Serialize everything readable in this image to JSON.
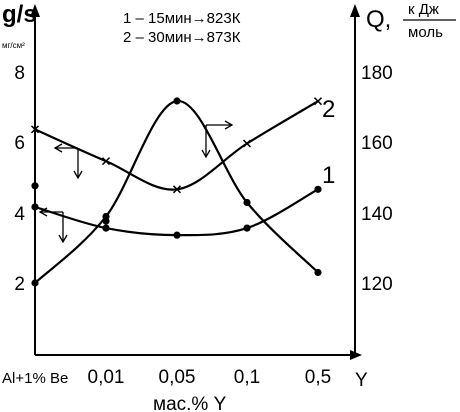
{
  "chart_data": {
    "type": "line",
    "left_axis": {
      "label": "g/s",
      "unit": "мг/см²",
      "ticks": [
        "2",
        "4",
        "6",
        "8"
      ],
      "range": [
        0,
        10
      ]
    },
    "right_axis": {
      "label": "Q,",
      "unit_num": "к Дж",
      "unit_den": "моль",
      "ticks": [
        "120",
        "140",
        "160",
        "180"
      ],
      "range": [
        100,
        192
      ]
    },
    "x_axis": {
      "label": "мас.% Y",
      "end_label": "Y",
      "categories": [
        "Al+1% Be",
        "0,01",
        "0,05",
        "0,1",
        "0,5"
      ]
    },
    "legend": [
      "1 – 15мин→823К",
      "2 – 30мин→873К"
    ],
    "series": [
      {
        "name": "1",
        "axis": "left",
        "marker": "dot",
        "values": [
          4.2,
          3.6,
          3.4,
          3.6,
          4.7
        ]
      },
      {
        "name": "2",
        "axis": "left",
        "marker": "cross",
        "values": [
          6.4,
          5.5,
          4.7,
          6.0,
          7.2
        ]
      },
      {
        "name": "",
        "axis": "right",
        "marker": "dot",
        "values": [
          120,
          139,
          172,
          143,
          123
        ]
      }
    ],
    "extra_points": [
      {
        "axis": "left",
        "x": 0,
        "y": 4.8
      },
      {
        "axis": "left",
        "x": 1,
        "y": 3.8
      }
    ],
    "curve_labels": [
      "1",
      "2"
    ]
  }
}
